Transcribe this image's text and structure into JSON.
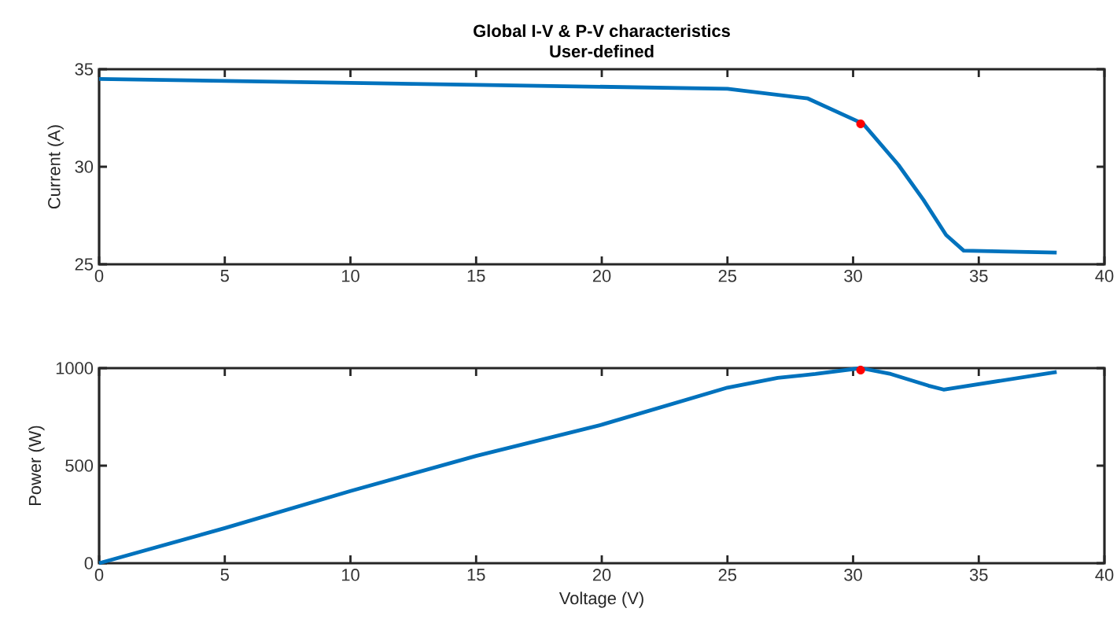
{
  "chart_data": [
    {
      "type": "line",
      "title": "Global I-V & P-V characteristics",
      "subtitle": "User-defined",
      "ylabel": "Current (A)",
      "xlim": [
        0,
        40
      ],
      "xticks": [
        0,
        5,
        10,
        15,
        20,
        25,
        30,
        35,
        40
      ],
      "ylim": [
        25,
        35
      ],
      "yticks": [
        25,
        30,
        35
      ],
      "grid": false,
      "series": [
        {
          "color": "#0072bd",
          "x": [
            0,
            5,
            10,
            15,
            20,
            25,
            28.2,
            30.4,
            31.8,
            32.8,
            33.7,
            34.4,
            38.1
          ],
          "values": [
            34.5,
            34.4,
            34.3,
            34.2,
            34.1,
            34.0,
            33.5,
            32.2,
            30.1,
            28.3,
            26.5,
            25.7,
            25.6
          ]
        },
        {
          "type": "scatter",
          "color": "#ff0000",
          "marker": "circle",
          "x": [
            30.3
          ],
          "values": [
            32.2
          ]
        }
      ]
    },
    {
      "type": "line",
      "xlabel": "Voltage (V)",
      "ylabel": "Power (W)",
      "xlim": [
        0,
        40
      ],
      "xticks": [
        0,
        5,
        10,
        15,
        20,
        25,
        30,
        35,
        40
      ],
      "ylim": [
        0,
        1000
      ],
      "yticks": [
        0,
        500,
        1000
      ],
      "grid": false,
      "series": [
        {
          "color": "#0072bd",
          "x": [
            0,
            5,
            10,
            15,
            20,
            25,
            27,
            28.5,
            30.3,
            31.5,
            33,
            33.6,
            38.1
          ],
          "values": [
            0,
            180,
            370,
            550,
            710,
            900,
            950,
            970,
            1000,
            970,
            910,
            890,
            980
          ]
        },
        {
          "type": "scatter",
          "color": "#ff0000",
          "marker": "circle",
          "x": [
            30.3
          ],
          "values": [
            990
          ]
        }
      ]
    }
  ]
}
